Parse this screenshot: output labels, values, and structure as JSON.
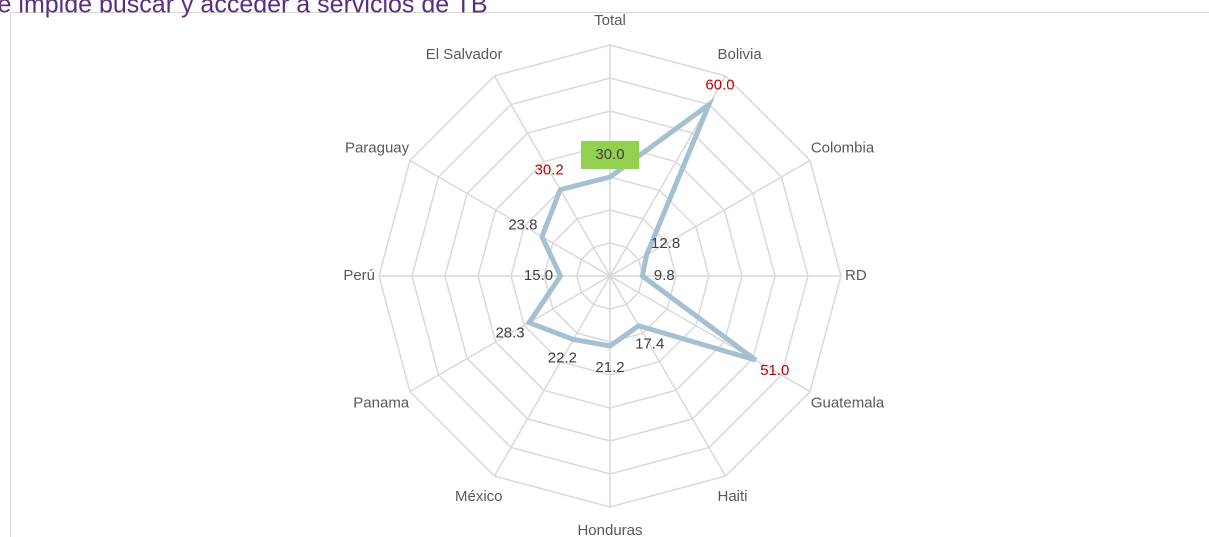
{
  "chart_data": {
    "type": "radar",
    "title": "le impide buscar y acceder a servicios de TB",
    "categories": [
      "Total",
      "Bolivia",
      "Colombia",
      "RD",
      "Guatemala",
      "Haiti",
      "Honduras",
      "México",
      "Panama",
      "Perú",
      "Paraguay",
      "El Salvador"
    ],
    "values": [
      30.0,
      60.0,
      12.8,
      9.8,
      51.0,
      17.4,
      21.2,
      22.2,
      28.3,
      15.0,
      23.8,
      30.2
    ],
    "value_labels": [
      "30.0",
      "60.0",
      "12.8",
      "9.8",
      "51.0",
      "17.4",
      "21.2",
      "22.2",
      "28.3",
      "15.0",
      "23.8",
      "30.2"
    ],
    "label_colors": [
      "#404040",
      "#c00000",
      "#404040",
      "#404040",
      "#c00000",
      "#404040",
      "#404040",
      "#404040",
      "#404040",
      "#404040",
      "#404040",
      "#c00000"
    ],
    "highlight_fill": [
      "#92d050",
      null,
      null,
      null,
      null,
      null,
      null,
      null,
      null,
      null,
      null,
      null
    ],
    "color": "#a5c0cf",
    "ylim": [
      0,
      70
    ],
    "yticks": [
      10,
      20,
      30,
      40,
      50,
      60,
      70
    ],
    "grid": true
  }
}
